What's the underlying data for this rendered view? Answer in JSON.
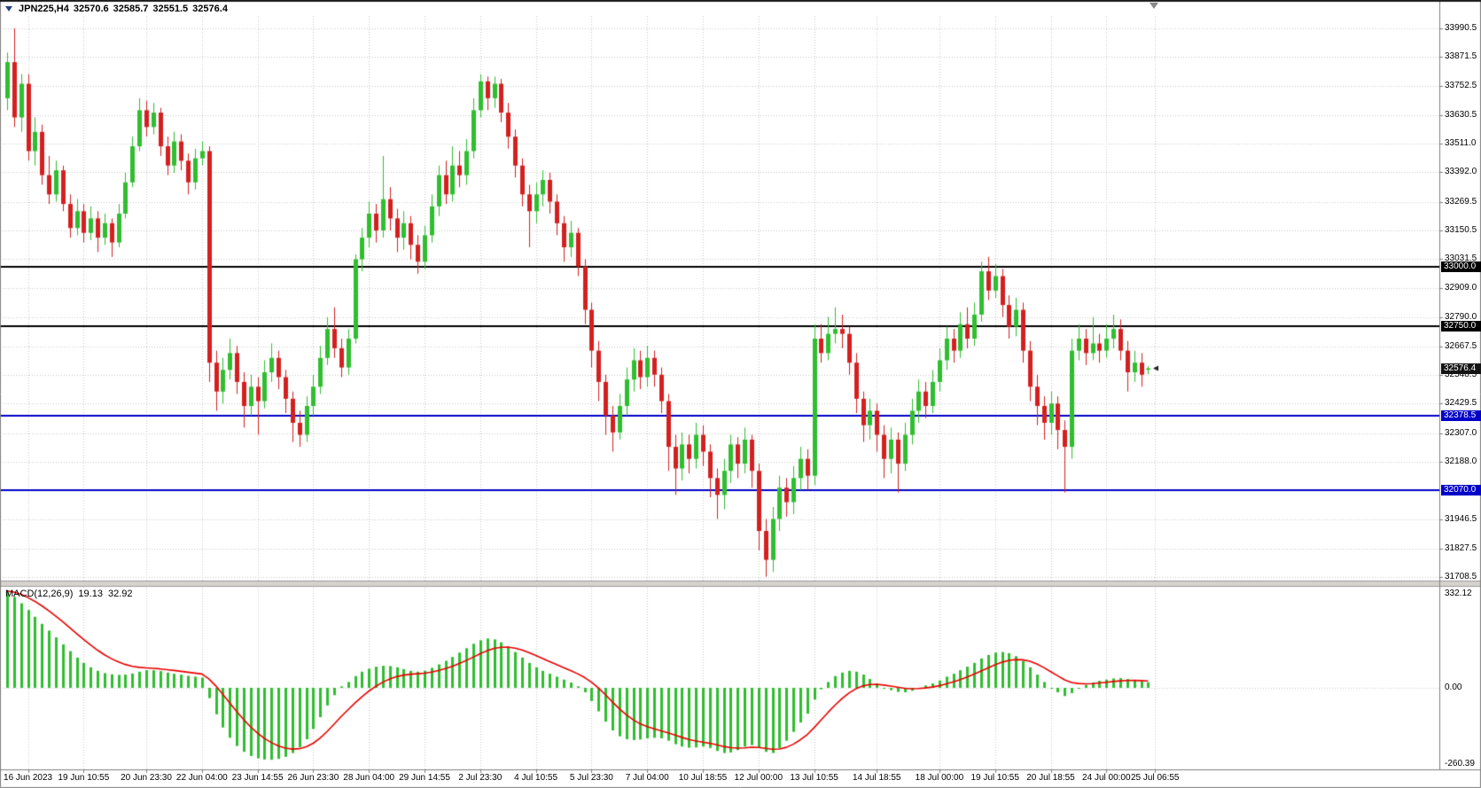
{
  "window": {
    "title": {
      "symbol_period": "JPN225,H4",
      "open": "32570.6",
      "high": "32585.7",
      "low": "32551.5",
      "close": "32576.4"
    }
  },
  "colors": {
    "background": "#FFFFFF",
    "grid": "#C8C8C8",
    "bull": "#2FBE2F",
    "bear": "#D42020",
    "signal_line": "#E80000",
    "level_black": "#000000",
    "level_blue": "#0000C8",
    "axis_text": "#000000",
    "tag_text": "#FFFFFF",
    "current_tag": "#141414",
    "splitter": "#D6D3CE",
    "axis_line": "#808080"
  },
  "price_axis": {
    "ticks": [
      "33990.5",
      "33871.5",
      "33752.5",
      "33630.5",
      "33511.0",
      "33392.0",
      "33269.5",
      "33150.5",
      "33031.5",
      "32909.0",
      "32790.0",
      "32667.5",
      "32548.5",
      "32429.5",
      "32307.0",
      "32188.0",
      "31946.5",
      "31827.5",
      "31708.5"
    ],
    "tags": [
      {
        "label": "33000.0",
        "price": 33000.0,
        "type": "black"
      },
      {
        "label": "32750.0",
        "price": 32750.0,
        "type": "black"
      },
      {
        "label": "32576.4",
        "price": 32576.4,
        "type": "current"
      },
      {
        "label": "32378.5",
        "price": 32378.5,
        "type": "blue"
      },
      {
        "label": "32070.0",
        "price": 32070.0,
        "type": "blue"
      }
    ]
  },
  "time_axis": {
    "labels": [
      {
        "text": "16 Jun 2023",
        "index": 3
      },
      {
        "text": "19 Jun 10:55",
        "index": 11
      },
      {
        "text": "20 Jun 23:30",
        "index": 20
      },
      {
        "text": "22 Jun 04:00",
        "index": 28
      },
      {
        "text": "23 Jun 14:55",
        "index": 36
      },
      {
        "text": "26 Jun 23:30",
        "index": 44
      },
      {
        "text": "28 Jun 04:00",
        "index": 52
      },
      {
        "text": "29 Jun 14:55",
        "index": 60
      },
      {
        "text": "2 Jul 23:30",
        "index": 68
      },
      {
        "text": "4 Jul 10:55",
        "index": 76
      },
      {
        "text": "5 Jul 23:30",
        "index": 84
      },
      {
        "text": "7 Jul 04:00",
        "index": 92
      },
      {
        "text": "10 Jul 18:55",
        "index": 100
      },
      {
        "text": "12 Jul 00:00",
        "index": 108
      },
      {
        "text": "13 Jul 10:55",
        "index": 116
      },
      {
        "text": "14 Jul 18:55",
        "index": 125
      },
      {
        "text": "18 Jul 00:00",
        "index": 134
      },
      {
        "text": "19 Jul 10:55",
        "index": 142
      },
      {
        "text": "20 Jul 18:55",
        "index": 150
      },
      {
        "text": "24 Jul 00:00",
        "index": 158
      },
      {
        "text": "25 Jul 06:55",
        "index": 165
      }
    ]
  },
  "indicator": {
    "name": "MACD(12,26,9)",
    "value1": "19.13",
    "value2": "32.92",
    "axis_labels": [
      "332.12",
      "0.00",
      "-260.39"
    ]
  },
  "chart_data": {
    "type": "candlestick",
    "title": "JPN225,H4",
    "symbol": "JPN225",
    "timeframe": "H4",
    "price_range": {
      "top": 33990.5,
      "bottom": 31708.5
    },
    "hlines": [
      {
        "price": 33000.0,
        "color": "#000000"
      },
      {
        "price": 32750.0,
        "color": "#000000"
      },
      {
        "price": 32378.5,
        "color": "#0000C8"
      },
      {
        "price": 32070.0,
        "color": "#0000C8"
      }
    ],
    "current_price": 32576.4,
    "candles": [
      [
        33700,
        33890,
        33650,
        33850
      ],
      [
        33850,
        33990,
        33580,
        33620
      ],
      [
        33620,
        33800,
        33560,
        33760
      ],
      [
        33760,
        33800,
        33440,
        33480
      ],
      [
        33480,
        33620,
        33420,
        33560
      ],
      [
        33560,
        33590,
        33340,
        33380
      ],
      [
        33380,
        33460,
        33260,
        33300
      ],
      [
        33300,
        33440,
        33270,
        33400
      ],
      [
        33400,
        33420,
        33230,
        33260
      ],
      [
        33260,
        33300,
        33120,
        33160
      ],
      [
        33160,
        33280,
        33130,
        33230
      ],
      [
        33230,
        33260,
        33100,
        33140
      ],
      [
        33140,
        33250,
        33110,
        33200
      ],
      [
        33200,
        33230,
        33060,
        33120
      ],
      [
        33120,
        33220,
        33090,
        33180
      ],
      [
        33180,
        33200,
        33040,
        33100
      ],
      [
        33100,
        33260,
        33080,
        33220
      ],
      [
        33220,
        33390,
        33200,
        33350
      ],
      [
        33350,
        33540,
        33330,
        33500
      ],
      [
        33500,
        33700,
        33480,
        33650
      ],
      [
        33650,
        33690,
        33540,
        33580
      ],
      [
        33580,
        33680,
        33550,
        33640
      ],
      [
        33640,
        33660,
        33460,
        33500
      ],
      [
        33500,
        33540,
        33380,
        33420
      ],
      [
        33420,
        33560,
        33390,
        33520
      ],
      [
        33520,
        33550,
        33400,
        33440
      ],
      [
        33440,
        33470,
        33300,
        33350
      ],
      [
        33350,
        33490,
        33320,
        33450
      ],
      [
        33450,
        33520,
        33420,
        33480
      ],
      [
        33480,
        33500,
        32520,
        32600
      ],
      [
        32600,
        32650,
        32400,
        32480
      ],
      [
        32480,
        32620,
        32430,
        32570
      ],
      [
        32570,
        32700,
        32530,
        32640
      ],
      [
        32640,
        32670,
        32470,
        32520
      ],
      [
        32520,
        32560,
        32330,
        32420
      ],
      [
        32420,
        32550,
        32380,
        32500
      ],
      [
        32500,
        32540,
        32300,
        32440
      ],
      [
        32440,
        32610,
        32410,
        32560
      ],
      [
        32560,
        32680,
        32520,
        32620
      ],
      [
        32620,
        32650,
        32490,
        32540
      ],
      [
        32540,
        32570,
        32390,
        32450
      ],
      [
        32450,
        32480,
        32270,
        32350
      ],
      [
        32350,
        32400,
        32250,
        32300
      ],
      [
        32300,
        32460,
        32270,
        32420
      ],
      [
        32420,
        32550,
        32380,
        32500
      ],
      [
        32500,
        32670,
        32470,
        32620
      ],
      [
        32620,
        32790,
        32590,
        32740
      ],
      [
        32740,
        32830,
        32620,
        32660
      ],
      [
        32660,
        32700,
        32540,
        32580
      ],
      [
        32580,
        32740,
        32550,
        32700
      ],
      [
        32700,
        33050,
        32680,
        33030
      ],
      [
        33030,
        33160,
        32980,
        33120
      ],
      [
        33120,
        33270,
        33080,
        33220
      ],
      [
        33220,
        33260,
        33100,
        33150
      ],
      [
        33150,
        33460,
        33120,
        33280
      ],
      [
        33280,
        33330,
        33150,
        33200
      ],
      [
        33200,
        33240,
        33060,
        33120
      ],
      [
        33120,
        33230,
        33070,
        33180
      ],
      [
        33180,
        33210,
        33030,
        33090
      ],
      [
        33090,
        33130,
        32970,
        33020
      ],
      [
        33020,
        33170,
        32990,
        33130
      ],
      [
        33130,
        33300,
        33100,
        33250
      ],
      [
        33250,
        33420,
        33210,
        33380
      ],
      [
        33380,
        33440,
        33260,
        33300
      ],
      [
        33300,
        33500,
        33270,
        33420
      ],
      [
        33420,
        33480,
        33330,
        33380
      ],
      [
        33380,
        33530,
        33340,
        33480
      ],
      [
        33480,
        33700,
        33450,
        33650
      ],
      [
        33650,
        33800,
        33620,
        33770
      ],
      [
        33770,
        33790,
        33650,
        33700
      ],
      [
        33700,
        33790,
        33660,
        33760
      ],
      [
        33760,
        33780,
        33600,
        33640
      ],
      [
        33640,
        33680,
        33490,
        33540
      ],
      [
        33540,
        33570,
        33370,
        33420
      ],
      [
        33420,
        33450,
        33250,
        33300
      ],
      [
        33300,
        33340,
        33080,
        33230
      ],
      [
        33230,
        33350,
        33180,
        33300
      ],
      [
        33300,
        33400,
        33250,
        33360
      ],
      [
        33360,
        33390,
        33220,
        33270
      ],
      [
        33270,
        33300,
        33130,
        33180
      ],
      [
        33180,
        33210,
        33020,
        33080
      ],
      [
        33080,
        33190,
        33040,
        33140
      ],
      [
        33140,
        33160,
        32960,
        33000
      ],
      [
        33000,
        33030,
        32760,
        32820
      ],
      [
        32820,
        32850,
        32580,
        32650
      ],
      [
        32650,
        32690,
        32440,
        32520
      ],
      [
        32520,
        32550,
        32300,
        32380
      ],
      [
        32380,
        32420,
        32230,
        32310
      ],
      [
        32310,
        32470,
        32280,
        32420
      ],
      [
        32420,
        32580,
        32380,
        32530
      ],
      [
        32530,
        32660,
        32480,
        32610
      ],
      [
        32610,
        32650,
        32490,
        32540
      ],
      [
        32540,
        32670,
        32500,
        32620
      ],
      [
        32620,
        32650,
        32500,
        32550
      ],
      [
        32550,
        32580,
        32390,
        32440
      ],
      [
        32440,
        32470,
        32150,
        32250
      ],
      [
        32250,
        32300,
        32050,
        32160
      ],
      [
        32160,
        32310,
        32110,
        32260
      ],
      [
        32260,
        32300,
        32140,
        32200
      ],
      [
        32200,
        32350,
        32160,
        32300
      ],
      [
        32300,
        32340,
        32170,
        32230
      ],
      [
        32230,
        32260,
        32040,
        32120
      ],
      [
        32120,
        32160,
        31950,
        32050
      ],
      [
        32050,
        32200,
        31990,
        32150
      ],
      [
        32150,
        32300,
        32100,
        32260
      ],
      [
        32260,
        32290,
        32120,
        32180
      ],
      [
        32180,
        32330,
        32140,
        32280
      ],
      [
        32280,
        32300,
        32080,
        32150
      ],
      [
        32150,
        32180,
        31820,
        31900
      ],
      [
        31900,
        31950,
        31710,
        31780
      ],
      [
        31780,
        32000,
        31730,
        31950
      ],
      [
        31950,
        32130,
        31900,
        32080
      ],
      [
        32080,
        32120,
        31960,
        32020
      ],
      [
        32020,
        32170,
        31970,
        32120
      ],
      [
        32120,
        32250,
        32070,
        32200
      ],
      [
        32200,
        32240,
        32070,
        32130
      ],
      [
        32130,
        32760,
        32090,
        32700
      ],
      [
        32700,
        32760,
        32600,
        32640
      ],
      [
        32640,
        32790,
        32610,
        32720
      ],
      [
        32720,
        32830,
        32680,
        32740
      ],
      [
        32740,
        32800,
        32660,
        32720
      ],
      [
        32720,
        32750,
        32550,
        32600
      ],
      [
        32600,
        32640,
        32390,
        32450
      ],
      [
        32450,
        32480,
        32270,
        32340
      ],
      [
        32340,
        32450,
        32280,
        32400
      ],
      [
        32400,
        32430,
        32230,
        32300
      ],
      [
        32300,
        32340,
        32120,
        32200
      ],
      [
        32200,
        32330,
        32140,
        32280
      ],
      [
        32280,
        32310,
        32060,
        32180
      ],
      [
        32180,
        32350,
        32150,
        32300
      ],
      [
        32300,
        32450,
        32260,
        32400
      ],
      [
        32400,
        32530,
        32350,
        32480
      ],
      [
        32480,
        32520,
        32370,
        32420
      ],
      [
        32420,
        32570,
        32390,
        32520
      ],
      [
        32520,
        32660,
        32480,
        32610
      ],
      [
        32610,
        32750,
        32570,
        32700
      ],
      [
        32700,
        32740,
        32600,
        32650
      ],
      [
        32650,
        32810,
        32620,
        32760
      ],
      [
        32760,
        32830,
        32660,
        32700
      ],
      [
        32700,
        32850,
        32670,
        32800
      ],
      [
        32800,
        33020,
        32770,
        32980
      ],
      [
        32980,
        33040,
        32860,
        32900
      ],
      [
        32900,
        33010,
        32870,
        32960
      ],
      [
        32960,
        32990,
        32790,
        32840
      ],
      [
        32840,
        32880,
        32700,
        32750
      ],
      [
        32750,
        32870,
        32710,
        32820
      ],
      [
        32820,
        32850,
        32600,
        32650
      ],
      [
        32650,
        32690,
        32440,
        32500
      ],
      [
        32500,
        32550,
        32340,
        32420
      ],
      [
        32420,
        32460,
        32280,
        32350
      ],
      [
        32350,
        32480,
        32300,
        32430
      ],
      [
        32430,
        32460,
        32240,
        32320
      ],
      [
        32320,
        32360,
        32060,
        32250
      ],
      [
        32250,
        32700,
        32200,
        32650
      ],
      [
        32650,
        32760,
        32610,
        32700
      ],
      [
        32700,
        32740,
        32590,
        32640
      ],
      [
        32640,
        32790,
        32610,
        32680
      ],
      [
        32680,
        32720,
        32600,
        32650
      ],
      [
        32650,
        32760,
        32620,
        32700
      ],
      [
        32700,
        32800,
        32660,
        32740
      ],
      [
        32740,
        32780,
        32610,
        32650
      ],
      [
        32650,
        32690,
        32480,
        32560
      ],
      [
        32560,
        32650,
        32520,
        32600
      ],
      [
        32600,
        32640,
        32500,
        32550
      ],
      [
        32570.6,
        32585.7,
        32551.5,
        32576.4
      ]
    ],
    "macd": {
      "label": "MACD(12,26,9)",
      "last_main": 19.13,
      "last_signal": 32.92,
      "range": [
        332.12,
        -260.39
      ],
      "signal_alpha": 0.2,
      "hist": [
        330,
        310,
        288,
        265,
        242,
        218,
        195,
        172,
        148,
        125,
        103,
        85,
        70,
        58,
        50,
        46,
        44,
        45,
        49,
        55,
        60,
        60,
        57,
        52,
        48,
        45,
        41,
        38,
        35,
        -35,
        -90,
        -135,
        -170,
        -198,
        -218,
        -232,
        -240,
        -244,
        -245,
        -242,
        -235,
        -222,
        -202,
        -175,
        -140,
        -100,
        -60,
        -25,
        5,
        20,
        40,
        55,
        65,
        72,
        75,
        74,
        70,
        64,
        58,
        55,
        58,
        68,
        80,
        92,
        105,
        120,
        135,
        150,
        162,
        168,
        165,
        155,
        140,
        122,
        103,
        85,
        70,
        58,
        48,
        38,
        28,
        18,
        5,
        -15,
        -45,
        -80,
        -115,
        -145,
        -165,
        -175,
        -178,
        -176,
        -172,
        -170,
        -172,
        -180,
        -192,
        -200,
        -204,
        -203,
        -200,
        -205,
        -215,
        -222,
        -220,
        -212,
        -200,
        -195,
        -205,
        -218,
        -222,
        -205,
        -180,
        -150,
        -118,
        -88,
        -40,
        -5,
        20,
        40,
        52,
        58,
        55,
        45,
        30,
        15,
        0,
        -8,
        -14,
        -15,
        -10,
        0,
        8,
        15,
        25,
        38,
        48,
        60,
        72,
        85,
        100,
        112,
        120,
        122,
        118,
        108,
        92,
        70,
        45,
        20,
        0,
        -15,
        -28,
        -18,
        0,
        10,
        18,
        24,
        28,
        32,
        33,
        30,
        26,
        22,
        19.13
      ]
    }
  }
}
